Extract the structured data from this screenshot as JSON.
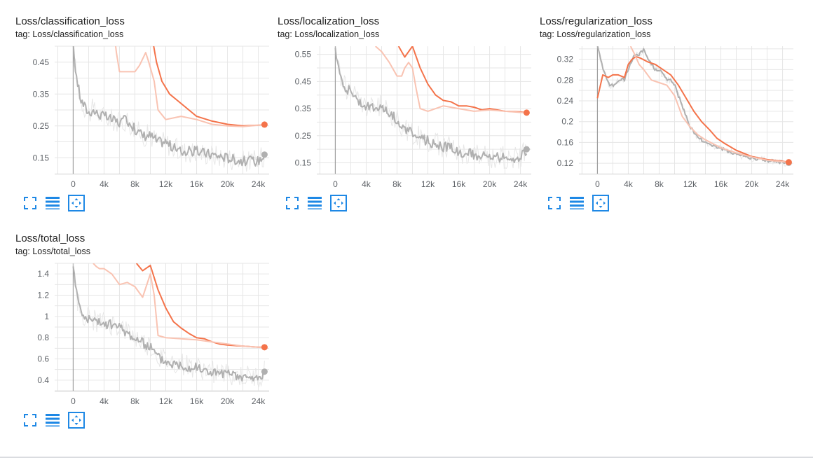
{
  "colors": {
    "smoothed_run": "#f4734a",
    "smoothed_run_raw": "#f9c3b2",
    "gray_run": "#b0b0b0",
    "gray_run_raw": "#e7e7e7",
    "grid": "#e6e6e6",
    "axis": "#9e9e9e",
    "button": "#1e88e5"
  },
  "icons": {
    "fullscreen": "fullscreen-icon",
    "data": "toggle-y-log-icon",
    "fit": "fit-domain-icon"
  },
  "chart_data": [
    {
      "type": "line",
      "title": "Loss/classification_loss",
      "tag": "tag: Loss/classification_loss",
      "xlim": [
        -2400,
        25400
      ],
      "ylim": [
        0.1,
        0.5
      ],
      "xticks": [
        0,
        4000,
        8000,
        12000,
        16000,
        20000,
        24000
      ],
      "xtick_labels": [
        "0",
        "4k",
        "8k",
        "12k",
        "16k",
        "20k",
        "24k"
      ],
      "yticks": [
        0.15,
        0.25,
        0.35,
        0.45
      ],
      "ytick_labels": [
        "0.15",
        "0.25",
        "0.35",
        "0.45"
      ],
      "grid": true,
      "series": [
        {
          "color_key": "gray_run",
          "kind": "noisy",
          "x": [
            0,
            300,
            600,
            1000,
            1500,
            2000,
            2500,
            3000,
            4000,
            5000,
            6000,
            7000,
            8000,
            9000,
            10000,
            11000,
            12000,
            13000,
            14000,
            15000,
            16000,
            18000,
            20000,
            22000,
            24000,
            24800
          ],
          "values": [
            0.5,
            0.43,
            0.38,
            0.33,
            0.31,
            0.29,
            0.3,
            0.29,
            0.28,
            0.27,
            0.26,
            0.27,
            0.24,
            0.22,
            0.22,
            0.2,
            0.2,
            0.18,
            0.17,
            0.17,
            0.17,
            0.16,
            0.15,
            0.14,
            0.14,
            0.16
          ],
          "last": 0.16
        },
        {
          "color_key": "smoothed_run",
          "kind": "smooth",
          "x": [
            10000,
            10800,
            11500,
            12500,
            14000,
            16000,
            18000,
            20000,
            22000,
            24000,
            24800
          ],
          "values": [
            0.56,
            0.45,
            0.39,
            0.35,
            0.32,
            0.28,
            0.265,
            0.255,
            0.25,
            0.252,
            0.254
          ],
          "last": 0.254
        },
        {
          "color_key": "smoothed_run_raw",
          "kind": "smooth",
          "x": [
            5200,
            5600,
            6000,
            7000,
            8000,
            8600,
            9000,
            9400,
            9800,
            10500,
            11000,
            12000,
            14000,
            16000,
            18000,
            20000,
            22000,
            24000,
            24800
          ],
          "values": [
            0.56,
            0.48,
            0.42,
            0.42,
            0.42,
            0.44,
            0.46,
            0.48,
            0.45,
            0.39,
            0.3,
            0.27,
            0.28,
            0.27,
            0.255,
            0.25,
            0.248,
            0.252,
            0.254
          ]
        }
      ]
    },
    {
      "type": "line",
      "title": "Loss/localization_loss",
      "tag": "tag: Loss/localization_loss",
      "xlim": [
        -2400,
        25400
      ],
      "ylim": [
        0.11,
        0.58
      ],
      "xticks": [
        0,
        4000,
        8000,
        12000,
        16000,
        20000,
        24000
      ],
      "xtick_labels": [
        "0",
        "4k",
        "8k",
        "12k",
        "16k",
        "20k",
        "24k"
      ],
      "yticks": [
        0.15,
        0.25,
        0.35,
        0.45,
        0.55
      ],
      "ytick_labels": [
        "0.15",
        "0.25",
        "0.35",
        "0.45",
        "0.55"
      ],
      "grid": true,
      "series": [
        {
          "color_key": "gray_run",
          "kind": "noisy",
          "x": [
            0,
            300,
            600,
            1000,
            1500,
            2000,
            3000,
            4000,
            5000,
            6000,
            7000,
            8000,
            9000,
            10000,
            11000,
            12000,
            13000,
            14000,
            15000,
            16000,
            18000,
            20000,
            22000,
            24000,
            24800
          ],
          "values": [
            0.58,
            0.52,
            0.48,
            0.45,
            0.42,
            0.42,
            0.38,
            0.36,
            0.35,
            0.36,
            0.33,
            0.31,
            0.27,
            0.26,
            0.24,
            0.23,
            0.22,
            0.21,
            0.21,
            0.19,
            0.18,
            0.17,
            0.17,
            0.17,
            0.2
          ],
          "last": 0.2
        },
        {
          "color_key": "smoothed_run",
          "kind": "smooth",
          "x": [
            8200,
            9000,
            10000,
            11000,
            12000,
            13000,
            14000,
            15000,
            16000,
            17000,
            18000,
            19000,
            20000,
            22000,
            24000,
            24800
          ],
          "values": [
            0.58,
            0.54,
            0.58,
            0.5,
            0.44,
            0.4,
            0.38,
            0.375,
            0.36,
            0.36,
            0.355,
            0.345,
            0.35,
            0.34,
            0.338,
            0.335
          ],
          "last": 0.335
        },
        {
          "color_key": "smoothed_run_raw",
          "kind": "smooth",
          "x": [
            5200,
            6000,
            7000,
            8000,
            8600,
            9000,
            9500,
            10000,
            10500,
            11000,
            12000,
            14000,
            16000,
            18000,
            20000,
            22000,
            24000,
            24800
          ],
          "values": [
            0.58,
            0.56,
            0.52,
            0.47,
            0.47,
            0.5,
            0.52,
            0.5,
            0.42,
            0.35,
            0.34,
            0.36,
            0.35,
            0.34,
            0.345,
            0.34,
            0.336,
            0.335
          ]
        }
      ]
    },
    {
      "type": "line",
      "title": "Loss/regularization_loss",
      "tag": "tag: Loss/regularization_loss",
      "xlim": [
        -2400,
        25400
      ],
      "ylim": [
        0.1,
        0.345
      ],
      "xticks": [
        0,
        4000,
        8000,
        12000,
        16000,
        20000,
        24000
      ],
      "xtick_labels": [
        "0",
        "4k",
        "8k",
        "12k",
        "16k",
        "20k",
        "24k"
      ],
      "yticks": [
        0.12,
        0.16,
        0.2,
        0.24,
        0.28,
        0.32
      ],
      "ytick_labels": [
        "0.12",
        "0.16",
        "0.2",
        "0.24",
        "0.28",
        "0.32"
      ],
      "grid": true,
      "series": [
        {
          "color_key": "gray_run",
          "kind": "noisy_small",
          "x": [
            0,
            400,
            800,
            1200,
            1600,
            2000,
            2500,
            3000,
            3500,
            4000,
            4500,
            5000,
            5500,
            6000,
            6500,
            7000,
            7500,
            8000,
            8500,
            9000,
            9500,
            10000,
            11000,
            12000,
            13000,
            14000,
            16000,
            18000,
            20000,
            22000,
            24000,
            24800
          ],
          "values": [
            0.345,
            0.32,
            0.3,
            0.28,
            0.27,
            0.27,
            0.275,
            0.28,
            0.28,
            0.3,
            0.32,
            0.33,
            0.33,
            0.34,
            0.32,
            0.31,
            0.3,
            0.3,
            0.29,
            0.28,
            0.28,
            0.27,
            0.23,
            0.19,
            0.17,
            0.16,
            0.148,
            0.138,
            0.13,
            0.125,
            0.122,
            0.121
          ],
          "last": 0.121
        },
        {
          "color_key": "smoothed_run",
          "kind": "smooth",
          "x": [
            0,
            700,
            1400,
            2000,
            2700,
            3500,
            4000,
            4500,
            5000,
            5600,
            6500,
            7500,
            8500,
            9500,
            10500,
            11500,
            12500,
            13500,
            14500,
            15500,
            16500,
            18000,
            20000,
            22000,
            24000,
            24800
          ],
          "values": [
            0.245,
            0.29,
            0.285,
            0.29,
            0.29,
            0.285,
            0.31,
            0.32,
            0.325,
            0.322,
            0.315,
            0.31,
            0.3,
            0.29,
            0.27,
            0.245,
            0.22,
            0.2,
            0.185,
            0.168,
            0.158,
            0.145,
            0.133,
            0.127,
            0.124,
            0.122
          ],
          "last": 0.122
        },
        {
          "color_key": "smoothed_run_raw",
          "kind": "smooth",
          "x": [
            4300,
            4800,
            5400,
            6000,
            7000,
            8000,
            9000,
            10000,
            11000,
            12000,
            13000,
            14000,
            16000,
            18000,
            20000,
            22000,
            24000,
            24800
          ],
          "values": [
            0.345,
            0.33,
            0.31,
            0.3,
            0.28,
            0.275,
            0.27,
            0.25,
            0.21,
            0.19,
            0.175,
            0.165,
            0.15,
            0.14,
            0.132,
            0.126,
            0.123,
            0.122
          ]
        }
      ]
    },
    {
      "type": "line",
      "title": "Loss/total_loss",
      "tag": "tag: Loss/total_loss",
      "xlim": [
        -2400,
        25400
      ],
      "ylim": [
        0.3,
        1.5
      ],
      "xticks": [
        0,
        4000,
        8000,
        12000,
        16000,
        20000,
        24000
      ],
      "xtick_labels": [
        "0",
        "4k",
        "8k",
        "12k",
        "16k",
        "20k",
        "24k"
      ],
      "yticks": [
        0.4,
        0.6,
        0.8,
        1.0,
        1.2,
        1.4
      ],
      "ytick_labels": [
        "0.4",
        "0.6",
        "0.8",
        "1",
        "1.2",
        "1.4"
      ],
      "grid": true,
      "series": [
        {
          "color_key": "gray_run",
          "kind": "noisy",
          "x": [
            0,
            300,
            600,
            1000,
            1500,
            2000,
            3000,
            4000,
            5000,
            6000,
            7000,
            8000,
            9000,
            10000,
            11000,
            12000,
            13000,
            14000,
            15000,
            16000,
            18000,
            20000,
            22000,
            24000,
            24800
          ],
          "values": [
            1.5,
            1.3,
            1.15,
            1.05,
            1.0,
            0.98,
            0.95,
            0.93,
            0.92,
            0.9,
            0.85,
            0.8,
            0.75,
            0.72,
            0.62,
            0.58,
            0.56,
            0.55,
            0.53,
            0.51,
            0.48,
            0.45,
            0.43,
            0.42,
            0.48
          ],
          "last": 0.48
        },
        {
          "color_key": "smoothed_run",
          "kind": "smooth",
          "x": [
            8200,
            9000,
            10000,
            11000,
            12000,
            13000,
            14000,
            15000,
            16000,
            17000,
            18000,
            19000,
            20000,
            22000,
            24000,
            24800
          ],
          "values": [
            1.5,
            1.43,
            1.48,
            1.25,
            1.08,
            0.95,
            0.89,
            0.84,
            0.8,
            0.79,
            0.76,
            0.74,
            0.73,
            0.72,
            0.71,
            0.71
          ],
          "last": 0.71
        },
        {
          "color_key": "smoothed_run_raw",
          "kind": "smooth",
          "x": [
            2600,
            3000,
            3400,
            4000,
            5000,
            6000,
            7000,
            8000,
            9000,
            10000,
            10500,
            11000,
            12000,
            14000,
            16000,
            18000,
            20000,
            22000,
            24000,
            24800
          ],
          "values": [
            1.5,
            1.47,
            1.45,
            1.45,
            1.4,
            1.3,
            1.32,
            1.28,
            1.18,
            1.4,
            1.2,
            0.82,
            0.8,
            0.79,
            0.78,
            0.76,
            0.74,
            0.72,
            0.71,
            0.71
          ]
        }
      ]
    }
  ]
}
